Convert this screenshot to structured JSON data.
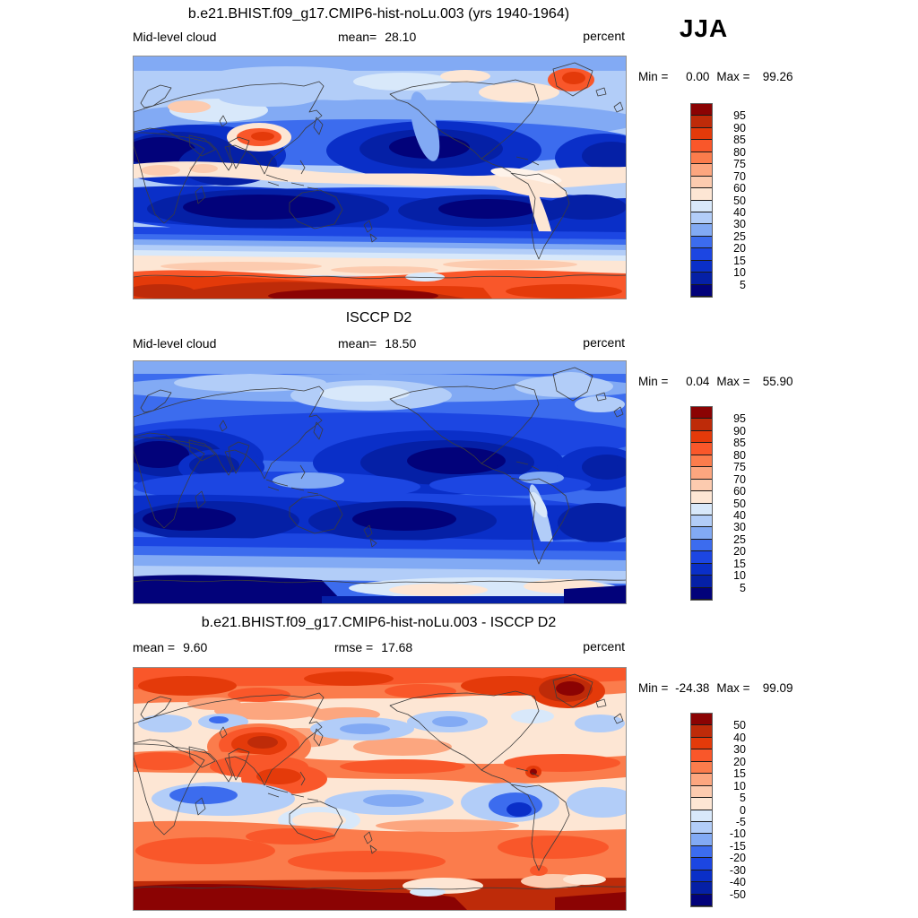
{
  "season": "JJA",
  "palette": [
    "#8B0303",
    "#BE2B09",
    "#E43A0A",
    "#F9572A",
    "#FB7C4C",
    "#FCA67F",
    "#FCCBAF",
    "#FDE6D4",
    "#D8E8FA",
    "#B2CDF8",
    "#82AAF4",
    "#3C6CEE",
    "#1C46E2",
    "#0A2FC8",
    "#0520A6",
    "#02027A"
  ],
  "chart_data": [
    {
      "type": "heatmap",
      "panel": "model",
      "title": "b.e21.BHIST.f09_g17.CMIP6-hist-noLu.003 (yrs 1940-1964)",
      "variable": "Mid-level cloud",
      "units": "percent",
      "mean_label": "mean=",
      "mean_value": "28.10",
      "min_label": "Min =",
      "min_value": "0.00",
      "max_label": "Max =",
      "max_value": "99.26",
      "colorbar": {
        "orientation": "vertical",
        "tick_labels": [
          "95",
          "90",
          "85",
          "80",
          "75",
          "70",
          "60",
          "50",
          "40",
          "30",
          "25",
          "20",
          "15",
          "10",
          "5"
        ]
      }
    },
    {
      "type": "heatmap",
      "panel": "observations",
      "title": "ISCCP D2",
      "variable": "Mid-level cloud",
      "units": "percent",
      "mean_label": "mean=",
      "mean_value": "18.50",
      "min_label": "Min =",
      "min_value": "0.04",
      "max_label": "Max =",
      "max_value": "55.90",
      "colorbar": {
        "orientation": "vertical",
        "tick_labels": [
          "95",
          "90",
          "85",
          "80",
          "75",
          "70",
          "60",
          "50",
          "40",
          "30",
          "25",
          "20",
          "15",
          "10",
          "5"
        ]
      }
    },
    {
      "type": "heatmap",
      "panel": "difference",
      "title": "b.e21.BHIST.f09_g17.CMIP6-hist-noLu.003 - ISCCP D2",
      "units": "percent",
      "mean_label": "mean =",
      "mean_value": "9.60",
      "rmse_label": "rmse =",
      "rmse_value": "17.68",
      "min_label": "Min =",
      "min_value": "-24.38",
      "max_label": "Max =",
      "max_value": "99.09",
      "colorbar": {
        "orientation": "vertical",
        "tick_labels": [
          "50",
          "40",
          "30",
          "20",
          "15",
          "10",
          "5",
          "0",
          "-5",
          "-10",
          "-15",
          "-20",
          "-30",
          "-40",
          "-50"
        ]
      }
    }
  ]
}
